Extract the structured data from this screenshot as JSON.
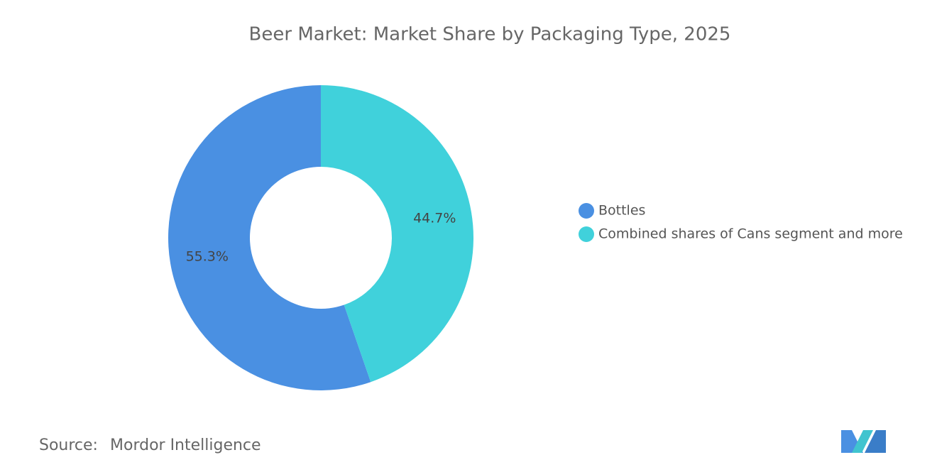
{
  "chart_data": {
    "type": "pie",
    "title": "Beer Market: Market Share by Packaging Type, 2025",
    "categories": [
      "Bottles",
      "Combined shares of Cans segment and more"
    ],
    "values": [
      55.3,
      44.7
    ],
    "value_labels": [
      "55.3%",
      "44.7%"
    ],
    "colors": [
      "#4a90e2",
      "#40d1db"
    ],
    "legend": "right"
  },
  "source": {
    "label": "Source:",
    "text": "Mordor Intelligence"
  }
}
